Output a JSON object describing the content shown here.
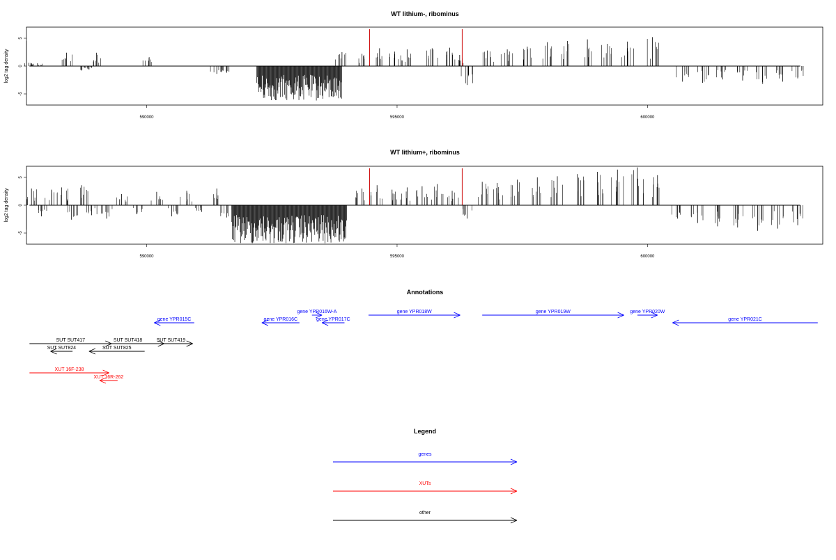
{
  "colors": {
    "bars": "#000000",
    "highlight": "#cc0000",
    "genes": "#0000ff",
    "xuts": "#ff0000",
    "other": "#000000"
  },
  "chart_data": [
    {
      "type": "bar",
      "title": "WT lithium-, ribominus",
      "ylabel": "log2 tag density",
      "xlim": [
        587600,
        603500
      ],
      "ylim": [
        -7,
        7
      ],
      "xticks": [
        590000,
        595000,
        600000
      ],
      "xtick_labels": [
        "590000",
        "595000",
        "600000"
      ],
      "yticks": [
        -5,
        0,
        5
      ],
      "ytick_labels": [
        "-5",
        "0",
        "5"
      ],
      "highlight_positions": [
        594450,
        596300
      ],
      "series": [
        {
          "x": [
            587650,
            587820,
            588400,
            588700,
            588850,
            589000,
            590050,
            591400,
            591600,
            593900,
            594300,
            594650,
            594950,
            595200,
            595700,
            596050,
            596250,
            596400,
            596800,
            597200,
            597600,
            598000,
            598400,
            598800,
            599200,
            599600,
            600100,
            600700,
            601100,
            601500,
            601900,
            602300,
            602700,
            603000
          ],
          "values": [
            0.6,
            0.5,
            2.4,
            -0.8,
            -0.6,
            2.4,
            1.6,
            -1.4,
            -1.2,
            2.5,
            2.2,
            3.2,
            2.6,
            3.0,
            3.2,
            3.3,
            2.0,
            -3.4,
            2.8,
            3.0,
            3.5,
            4.3,
            4.5,
            4.8,
            4.0,
            4.4,
            5.2,
            -2.8,
            -3.0,
            -2.4,
            -2.6,
            -3.2,
            -2.8,
            -2.2
          ]
        }
      ],
      "negative_cluster": {
        "x_start": 592200,
        "x_end": 593900,
        "min_value": -6.3
      }
    },
    {
      "type": "bar",
      "title": "WT lithium+, ribominus",
      "ylabel": "log2 tag density",
      "xlim": [
        587600,
        603500
      ],
      "ylim": [
        -7,
        7
      ],
      "xticks": [
        590000,
        595000,
        600000
      ],
      "xtick_labels": [
        "590000",
        "595000",
        "600000"
      ],
      "yticks": [
        -5,
        0,
        5
      ],
      "ytick_labels": [
        "-5",
        "0",
        "5"
      ],
      "highlight_positions": [
        594450,
        596300
      ],
      "series": [
        {
          "x": [
            587700,
            587900,
            588100,
            588300,
            588500,
            588700,
            588900,
            589200,
            589500,
            589800,
            590200,
            590500,
            590800,
            591100,
            591400,
            591600,
            594300,
            594600,
            594900,
            595200,
            595500,
            595800,
            596100,
            596400,
            596700,
            597000,
            597400,
            597800,
            598200,
            598600,
            599000,
            599400,
            599800,
            600200,
            600600,
            601000,
            601400,
            601800,
            602200,
            602600,
            603000
          ],
          "values": [
            3.0,
            -2.0,
            2.8,
            3.2,
            -2.6,
            3.6,
            -1.8,
            -2.4,
            2.0,
            -1.6,
            2.4,
            -2.0,
            2.6,
            -1.2,
            3.0,
            -2.2,
            3.0,
            3.6,
            2.8,
            3.2,
            3.4,
            3.8,
            2.6,
            -2.4,
            4.2,
            4.0,
            4.6,
            5.0,
            5.2,
            5.6,
            6.0,
            6.4,
            6.8,
            5.4,
            -2.4,
            -3.2,
            -3.8,
            -4.0,
            -4.6,
            -4.2,
            -3.6
          ]
        }
      ],
      "negative_cluster": {
        "x_start": 591700,
        "x_end": 594000,
        "min_value": -7.0
      }
    }
  ],
  "annotations": {
    "title": "Annotations",
    "items": [
      {
        "label": "gene YPR015C",
        "start": 590150,
        "end": 590950,
        "strand": "-",
        "kind": "gene",
        "row": 1
      },
      {
        "label": "gene YPR016W-A",
        "start": 593300,
        "end": 593500,
        "strand": "+",
        "kind": "gene",
        "row": 0
      },
      {
        "label": "gene YPR016C",
        "start": 592300,
        "end": 593050,
        "strand": "-",
        "kind": "gene",
        "row": 1
      },
      {
        "label": "gene YPR017C",
        "start": 593500,
        "end": 593950,
        "strand": "-",
        "kind": "gene",
        "row": 1
      },
      {
        "label": "gene YPR018W",
        "start": 594430,
        "end": 596260,
        "strand": "+",
        "kind": "gene",
        "row": 0
      },
      {
        "label": "gene YPR019W",
        "start": 596700,
        "end": 599530,
        "strand": "+",
        "kind": "gene",
        "row": 0
      },
      {
        "label": "gene YPR020W",
        "start": 599800,
        "end": 600200,
        "strand": "+",
        "kind": "gene",
        "row": 0
      },
      {
        "label": "gene YPR021C",
        "start": 600500,
        "end": 603400,
        "strand": "-",
        "kind": "gene",
        "row": 1
      },
      {
        "label": "SUT SUT417",
        "start": 587660,
        "end": 589300,
        "strand": "+",
        "kind": "other",
        "row": 2
      },
      {
        "label": "SUT SUT418",
        "start": 588900,
        "end": 590350,
        "strand": "+",
        "kind": "other",
        "row": 2
      },
      {
        "label": "SUT SUT419",
        "start": 590050,
        "end": 590920,
        "strand": "+",
        "kind": "other",
        "row": 2
      },
      {
        "label": "SUT SUT824",
        "start": 588080,
        "end": 588520,
        "strand": "-",
        "kind": "other",
        "row": 3
      },
      {
        "label": "SUT SUT825",
        "start": 588850,
        "end": 589960,
        "strand": "-",
        "kind": "other",
        "row": 3
      },
      {
        "label": "XUT 16F-238",
        "start": 587660,
        "end": 589250,
        "strand": "+",
        "kind": "xut",
        "row": 4
      },
      {
        "label": "XUT 16R-262",
        "start": 589060,
        "end": 589420,
        "strand": "-",
        "kind": "xut",
        "row": 5
      }
    ]
  },
  "legend": {
    "title": "Legend",
    "items": [
      {
        "label": "genes",
        "kind": "gene"
      },
      {
        "label": "XUTs",
        "kind": "xut"
      },
      {
        "label": "other",
        "kind": "other"
      }
    ]
  }
}
